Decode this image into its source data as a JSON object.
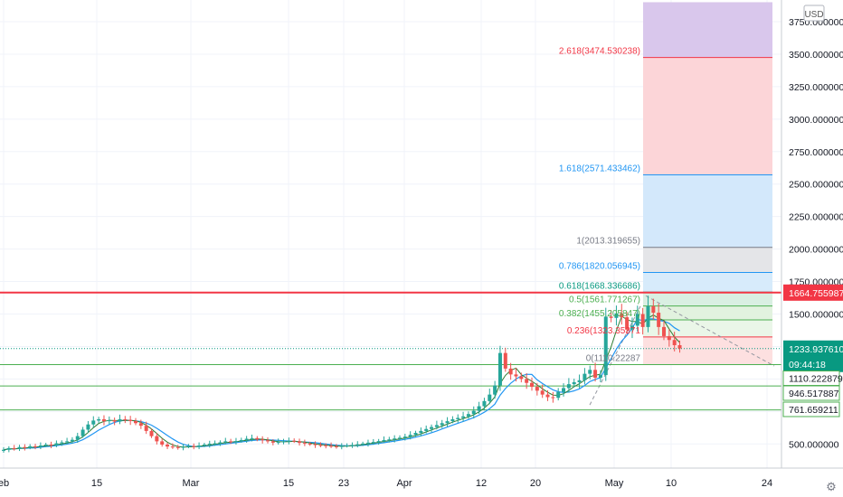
{
  "currency_badge": "USD",
  "price_scale_labels": [
    "3750.000000",
    "3500.000000",
    "3250.000000",
    "3000.000000",
    "2750.000000",
    "2500.000000",
    "2250.000000",
    "2000.000000",
    "1750.000000",
    "1500.000000",
    "500.000000"
  ],
  "time_axis_labels": [
    "eb",
    "15",
    "Mar",
    "15",
    "23",
    "Apr",
    "12",
    "20",
    "May",
    "10",
    "24"
  ],
  "fib_labels": [
    {
      "text": "2.618(3474.530238)",
      "color": "#f23645"
    },
    {
      "text": "1.618(2571.433462)",
      "color": "#2196f3"
    },
    {
      "text": "1(2013.319655)",
      "color": "#787b86"
    },
    {
      "text": "0.786(1820.056945)",
      "color": "#2196f3"
    },
    {
      "text": "0.618(1668.336686)",
      "color": "#089981"
    },
    {
      "text": "0.5(1561.771267)",
      "color": "#4caf50"
    },
    {
      "text": "0.382(1455.205847)",
      "color": "#4caf50"
    },
    {
      "text": "0.236(1323.35371",
      "color": "#f23645"
    },
    {
      "text": "0(1110.22287",
      "color": "#787b86"
    }
  ],
  "price_badges": {
    "resistance": {
      "text": "1664.755987",
      "color": "#f23645"
    },
    "last_price": {
      "text": "1233.937610",
      "color": "#089981"
    },
    "countdown": {
      "text": "09:44:18",
      "color": "#089981"
    },
    "level_1": {
      "text": "1110.222879",
      "color": "#4caf50"
    },
    "level_2": {
      "text": "946.517887",
      "color": "#4caf50"
    },
    "level_3": {
      "text": "761.659211",
      "color": "#4caf50"
    }
  },
  "settings_icon": "gear-icon",
  "colors": {
    "up": "#26a69a",
    "down": "#ef5350",
    "ma": "#2196f3",
    "ma2": "#2e7d32"
  },
  "chart_data": {
    "type": "candlestick",
    "y_axis": {
      "min": 250,
      "max": 3900,
      "scale": "linear",
      "position": "right"
    },
    "x_axis": {
      "start": "2020-02-01",
      "end": "2020-05-27"
    },
    "grid": true,
    "horizontal_levels": [
      1664.755987,
      1110.222879,
      946.517887,
      761.659211
    ],
    "fib_extension_levels": [
      3474.530238,
      2571.433462,
      2013.319655,
      1820.056945,
      1668.336686,
      1561.771267,
      1455.205847,
      1323.35371,
      1110.22287
    ],
    "last_price": 1233.93761,
    "series": [
      {
        "name": "candles",
        "close": [
          455,
          468,
          462,
          476,
          470,
          482,
          478,
          488,
          495,
          490,
          505,
          512,
          520,
          532,
          560,
          610,
          650,
          680,
          690,
          675,
          682,
          672,
          690,
          685,
          676,
          660,
          640,
          600,
          560,
          520,
          495,
          480,
          475,
          472,
          478,
          484,
          478,
          488,
          495,
          502,
          505,
          512,
          520,
          518,
          522,
          530,
          540,
          545,
          535,
          528,
          520,
          510,
          515,
          520,
          525,
          520,
          508,
          502,
          498,
          492,
          490,
          486,
          482,
          480,
          484,
          488,
          492,
          497,
          503,
          510,
          515,
          522,
          530,
          535,
          542,
          548,
          556,
          570,
          585,
          600,
          615,
          630,
          645,
          660,
          675,
          690,
          700,
          712,
          730,
          755,
          790,
          830,
          880,
          950,
          1200,
          1080,
          1035,
          1020,
          1000,
          970,
          940,
          910,
          880,
          860,
          855,
          900,
          930,
          960,
          975,
          990,
          1040,
          1070,
          1010,
          1030,
          1480,
          1470,
          1505,
          1475,
          1380,
          1410,
          1500,
          1400,
          1560,
          1510,
          1400,
          1330,
          1300,
          1260,
          1235
        ]
      }
    ]
  }
}
